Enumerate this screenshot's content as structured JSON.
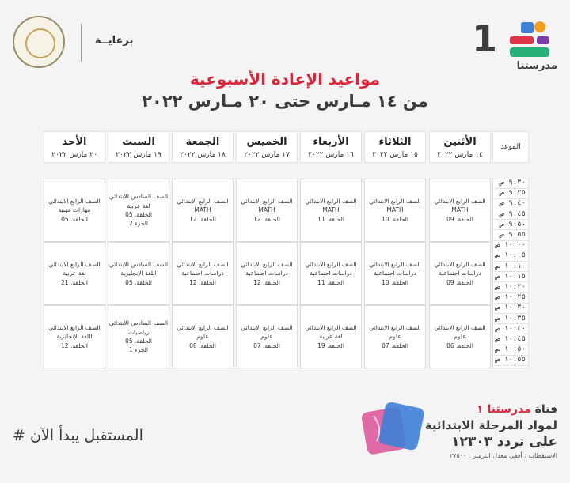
{
  "header": {
    "brand_number": "1",
    "brand_name": "مدرستنا",
    "sponsor_label": "برعايــة",
    "title": "مواعيد الإعادة الأسبوعية",
    "subtitle": "من ١٤ مـارس حتى ٢٠ مـارس ٢٠٢٢"
  },
  "table": {
    "time_header": "الموعد",
    "days": [
      {
        "name": "الأثنين",
        "date": "١٤ مارس ٢٠٢٢"
      },
      {
        "name": "الثلاثاء",
        "date": "١٥ مارس ٢٠٢٢"
      },
      {
        "name": "الأربعاء",
        "date": "١٦ مارس ٢٠٢٢"
      },
      {
        "name": "الخميس",
        "date": "١٧ مارس ٢٠٢٢"
      },
      {
        "name": "الجمعة",
        "date": "١٨ مارس ٢٠٢٢"
      },
      {
        "name": "السبت",
        "date": "١٩ مارس ٢٠٢٢"
      },
      {
        "name": "الأحد",
        "date": "٢٠ مارس ٢٠٢٢"
      }
    ],
    "times": [
      "٩:٣٠ ص",
      "٩:٣٥ ص",
      "٩:٤٠ ص",
      "٩:٤٥ ص",
      "٩:٥٠ ص",
      "٩:٥٥ ص",
      "١٠:٠٠ ص",
      "١٠:٠٥ ص",
      "١٠:١٠ ص",
      "١٠:١٥ ص",
      "١٠:٢٠ ص",
      "١٠:٢٥ ص",
      "١٠:٣٠ ص",
      "١٠:٣٥ ص",
      "١٠:٤٠ ص",
      "١٠:٤٥ ص",
      "١٠:٥٠ ص",
      "١٠:٥٥ ص"
    ],
    "slots": [
      [
        [
          "الصف الرابع الابتدائي",
          "MATH",
          "الحلقة. 09"
        ],
        [
          "الصف الرابع الابتدائي",
          "MATH",
          "الحلقة. 10"
        ],
        [
          "الصف الرابع الابتدائي",
          "MATH",
          "الحلقة. 11"
        ],
        [
          "الصف الرابع الابتدائي",
          "MATH",
          "الحلقة. 12"
        ],
        [
          "الصف الرابع الابتدائي",
          "MATH",
          "الحلقة. 12"
        ],
        [
          "الصف السادس الابتدائي",
          "لغة عربية",
          "الحلقة. 05",
          "الجزء 2"
        ],
        [
          "الصف الرابع الابتدائي",
          "مهارات مهنية",
          "الحلقة. 05"
        ]
      ],
      [
        [
          "الصف الرابع الابتدائي",
          "دراسات اجتماعية",
          "الحلقة. 09"
        ],
        [
          "الصف الرابع الابتدائي",
          "دراسات اجتماعية",
          "الحلقة. 10"
        ],
        [
          "الصف الرابع الابتدائي",
          "دراسات اجتماعية",
          "الحلقة. 11"
        ],
        [
          "الصف الرابع الابتدائي",
          "دراسات اجتماعية",
          "الحلقة. 12"
        ],
        [
          "الصف الرابع الابتدائي",
          "دراسات اجتماعية",
          "الحلقة. 12"
        ],
        [
          "الصف السادس الابتدائي",
          "اللغة الإنجليزية",
          "الحلقة. 05"
        ],
        [
          "الصف الرابع الابتدائي",
          "لغة عربية",
          "الحلقة. 21"
        ]
      ],
      [
        [
          "الصف الرابع الابتدائي",
          "علوم",
          "الحلقة. 06"
        ],
        [
          "الصف الرابع الابتدائي",
          "علوم",
          "الحلقة. 07"
        ],
        [
          "الصف الرابع الابتدائي",
          "لغة عربية",
          "الحلقة. 19"
        ],
        [
          "الصف الرابع الابتدائي",
          "علوم",
          "الحلقة. 07"
        ],
        [
          "الصف الرابع الابتدائي",
          "علوم",
          "الحلقة. 08"
        ],
        [
          "الصف السادس الابتدائي",
          "رياضيات",
          "الحلقة. 05",
          "الجزء 1"
        ],
        [
          "الصف الرابع الابتدائي",
          "اللغة الإنجليزية",
          "الحلقة. 12"
        ]
      ]
    ]
  },
  "footer": {
    "slogan": "# المستقبل يبدأ الآن",
    "channel_prefix": "قناة",
    "channel_name": "مدرستنا ١",
    "line2": "لمواد المرحلة الابتدائية",
    "line3": "على تردد ١٢٣٠٣",
    "line4": "الاستقطاب : أفقي معدل الترميز : ٢٧٥٠٠"
  },
  "colors": {
    "title_red": "#d9263a",
    "brand_orange": "#f39c1f",
    "brand_blue": "#3f7fd6",
    "brand_red": "#e0344a",
    "brand_purple": "#7a3fa8",
    "brand_green": "#27b07a"
  },
  "icons": {
    "brand_logo": "madrasetna-blocks-icon",
    "ministry_seal": "ministry-seal-icon"
  }
}
